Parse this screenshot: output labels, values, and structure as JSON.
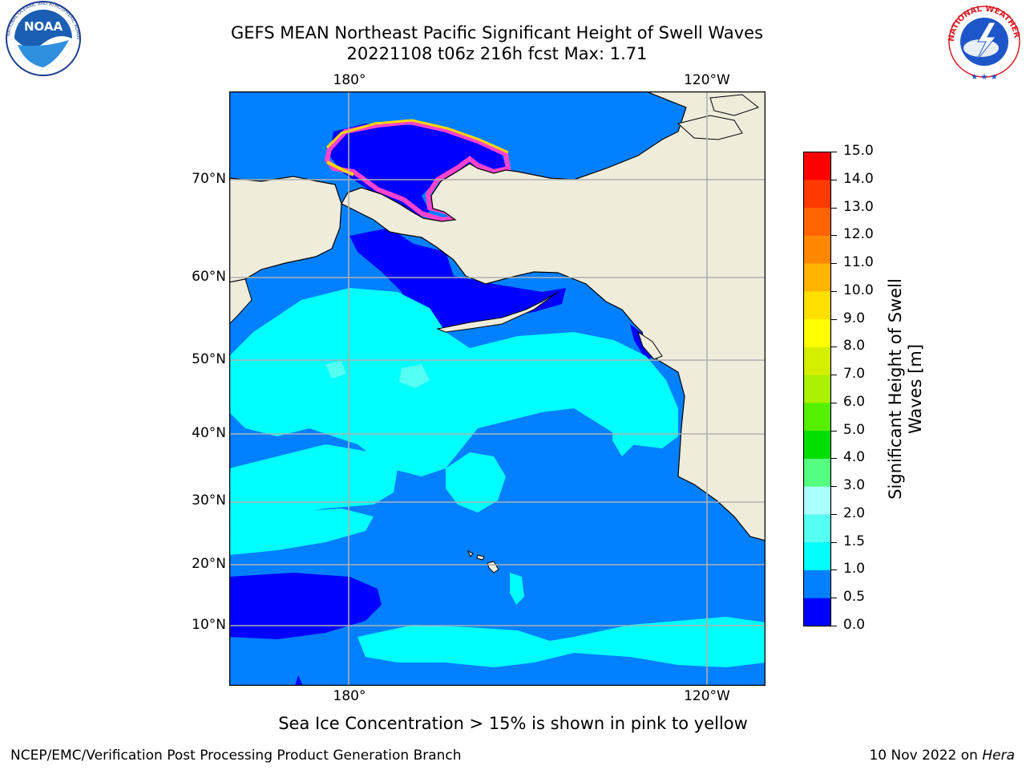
{
  "title": {
    "line1": "GEFS MEAN Northeast Pacific Significant Height of Swell Waves",
    "line2": "20221108 t06z 216h fcst   Max: 1.71"
  },
  "logos": {
    "noaa": {
      "text": "NOAA",
      "ring_text": "NATIONAL OCEANIC AND ATMOSPHERIC ADMINISTRATION · U.S. DEPARTMENT OF COMMERCE"
    },
    "nws": {
      "ring_text": "NATIONAL WEATHER SERVICE"
    }
  },
  "map": {
    "lat_labels": [
      "70°N",
      "60°N",
      "50°N",
      "40°N",
      "30°N",
      "20°N",
      "10°N"
    ],
    "lon_labels_top": [
      "180°",
      "120°W"
    ],
    "lon_labels_bottom": [
      "180°",
      "120°W"
    ],
    "colors": {
      "land": "#efecdc",
      "c0_05": "#0000ff",
      "c05_1": "#0080ff",
      "c1_15": "#00ffff",
      "c15_2": "#55fff2",
      "ice_pink": "#ff44cc",
      "ice_yellow": "#ffd700",
      "grid": "#b0b0b0"
    }
  },
  "colorbar": {
    "label_line1": "Significant Height of Swell",
    "label_line2": "Waves [m]",
    "ticks": [
      "0.0",
      "0.5",
      "1.0",
      "1.5",
      "2.0",
      "3.0",
      "4.0",
      "5.0",
      "6.0",
      "7.0",
      "8.0",
      "9.0",
      "10.0",
      "11.0",
      "12.0",
      "13.0",
      "14.0",
      "15.0"
    ],
    "colors": [
      "#0000ff",
      "#0080ff",
      "#00ffff",
      "#55fff2",
      "#aaffff",
      "#55ff80",
      "#00e000",
      "#55f000",
      "#aaf000",
      "#d4f000",
      "#ffff00",
      "#ffe000",
      "#ffb400",
      "#ff8800",
      "#ff6400",
      "#ff3a00",
      "#ff0000"
    ]
  },
  "note": "Sea Ice Concentration > 15% is shown in pink to yellow",
  "footer": {
    "left": "NCEP/EMC/Verification Post Processing Product Generation Branch",
    "right_date": "10 Nov 2022 on",
    "right_machine": "Hera"
  }
}
